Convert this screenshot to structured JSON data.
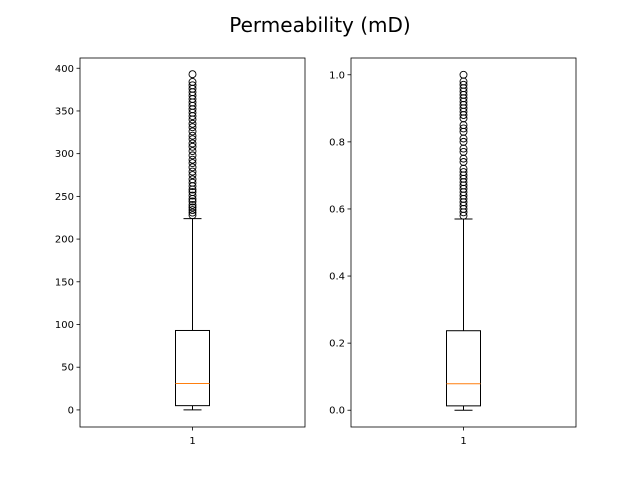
{
  "title": "Permeability (mD)",
  "chart_data": [
    {
      "type": "box",
      "categories": [
        "1"
      ],
      "ylim": [
        -20,
        412
      ],
      "yticks": [
        0,
        50,
        100,
        150,
        200,
        250,
        300,
        350,
        400
      ],
      "ytick_labels": [
        "0",
        "50",
        "100",
        "150",
        "200",
        "250",
        "300",
        "350",
        "400"
      ],
      "grid": false,
      "box": {
        "whisker_low": 0,
        "q1": 5,
        "median": 31,
        "q3": 93,
        "whisker_high": 224
      },
      "outliers": [
        228,
        231,
        234,
        237,
        240,
        244,
        247,
        251,
        255,
        258,
        262,
        266,
        270,
        275,
        279,
        284,
        289,
        293,
        298,
        303,
        308,
        312,
        317,
        321,
        326,
        331,
        335,
        340,
        344,
        348,
        352,
        356,
        360,
        364,
        368,
        372,
        376,
        380,
        384,
        393
      ],
      "median_color": "#ff7f0e"
    },
    {
      "type": "box",
      "categories": [
        "1"
      ],
      "ylim": [
        -0.05,
        1.05
      ],
      "yticks": [
        0.0,
        0.2,
        0.4,
        0.6,
        0.8,
        1.0
      ],
      "ytick_labels": [
        "0.0",
        "0.2",
        "0.4",
        "0.6",
        "0.8",
        "1.0"
      ],
      "grid": false,
      "box": {
        "whisker_low": 0.0,
        "q1": 0.013,
        "median": 0.079,
        "q3": 0.237,
        "whisker_high": 0.57
      },
      "outliers": [
        0.58,
        0.59,
        0.6,
        0.61,
        0.62,
        0.63,
        0.64,
        0.65,
        0.66,
        0.67,
        0.68,
        0.69,
        0.7,
        0.71,
        0.72,
        0.74,
        0.75,
        0.77,
        0.78,
        0.8,
        0.81,
        0.83,
        0.84,
        0.85,
        0.87,
        0.88,
        0.89,
        0.9,
        0.91,
        0.92,
        0.93,
        0.94,
        0.95,
        0.96,
        0.97,
        0.98,
        1.0
      ],
      "median_color": "#ff7f0e"
    }
  ]
}
